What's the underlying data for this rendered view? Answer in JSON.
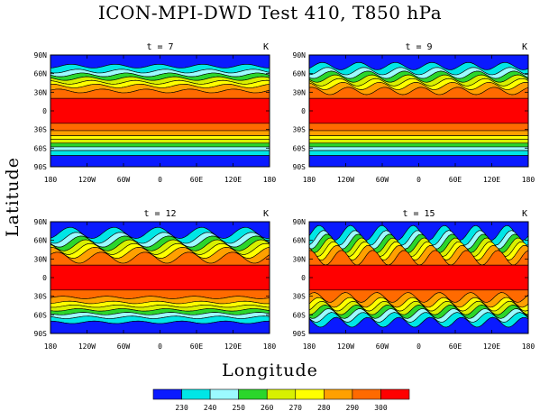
{
  "title": "ICON-MPI-DWD Test 410, T850 hPa",
  "xlabel": "Longitude",
  "ylabel": "Latitude",
  "chart_data": {
    "type": "heatmap",
    "variable": "Temperature at 850 hPa",
    "units": "K",
    "lat_range": [
      -90,
      90
    ],
    "lon_range": [
      -180,
      180
    ],
    "levels": [
      230,
      240,
      250,
      260,
      270,
      280,
      290,
      300
    ],
    "colors": [
      "#0a1aff",
      "#00e6e6",
      "#9cfaff",
      "#2bd62b",
      "#d8f000",
      "#ffff00",
      "#ffa000",
      "#ff6a00",
      "#ff0000"
    ],
    "y_ticks": [
      "90N",
      "60N",
      "30N",
      "0",
      "30S",
      "60S",
      "90S"
    ],
    "x_ticks": [
      "180",
      "120W",
      "60W",
      "0",
      "60E",
      "120E",
      "180"
    ],
    "band_boundaries_lat": [
      72,
      64,
      58,
      52,
      46,
      40,
      32,
      20
    ],
    "panels": [
      {
        "title": "t = 7",
        "units": "K",
        "wave_amp_nh": 3,
        "wave_amp_sh": 0,
        "wavenumber": 5
      },
      {
        "title": "t = 9",
        "units": "K",
        "wave_amp_nh": 6,
        "wave_amp_sh": 0,
        "wavenumber": 6
      },
      {
        "title": "t = 12",
        "units": "K",
        "wave_amp_nh": 9,
        "wave_amp_sh": 2,
        "wavenumber": 5
      },
      {
        "title": "t = 15",
        "units": "K",
        "wave_amp_nh": 12,
        "wave_amp_sh": 8,
        "wavenumber": 7
      }
    ]
  }
}
